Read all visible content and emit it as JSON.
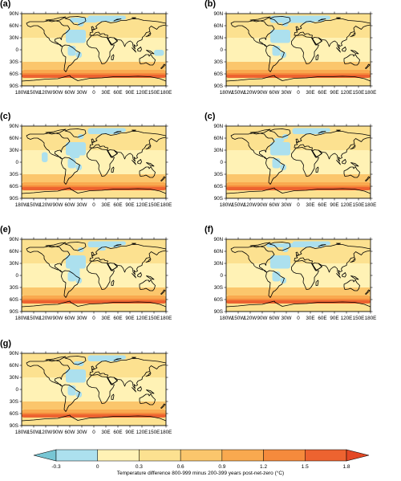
{
  "figure": {
    "panels": [
      {
        "label": "(a)"
      },
      {
        "label": "(b)"
      },
      {
        "label": "(c)"
      },
      {
        "label": "(c)"
      },
      {
        "label": "(e)"
      },
      {
        "label": "(f)"
      },
      {
        "label": "(g)"
      }
    ],
    "lat_ticks": [
      "90N",
      "60N",
      "30N",
      "0",
      "30S",
      "60S",
      "90S"
    ],
    "lon_ticks": [
      "180W",
      "150W",
      "120W",
      "90W",
      "60W",
      "30W",
      "0",
      "30E",
      "60E",
      "90E",
      "120E",
      "150E",
      "180E"
    ]
  },
  "colorbar": {
    "title": "Temperature difference 800-999 minus 200-399 years post-net-zero (°C)",
    "tick_labels": [
      "-0.3",
      "0",
      "0.3",
      "0.6",
      "0.9",
      "1.2",
      "1.5",
      "1.8"
    ],
    "colors": [
      "#77c6d4",
      "#ace0ee",
      "#fff2b5",
      "#fce190",
      "#fbc66c",
      "#f9a94f",
      "#f58a3c",
      "#ed6330",
      "#e34825"
    ]
  },
  "colors": {
    "ocean_base": "#fce190",
    "tropics": "#fff2b5",
    "cool": "#ace0ee",
    "warm": "#fbc66c",
    "warmer": "#f9a94f",
    "hot": "#f58a3c",
    "hotter": "#ed6330",
    "coast": "#000000"
  }
}
